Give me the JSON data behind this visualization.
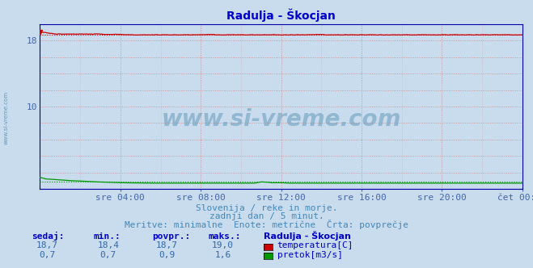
{
  "title": "Radulja - Škocjan",
  "background_color": "#c8dced",
  "plot_bg_color": "#c8dced",
  "xlim": [
    0,
    288
  ],
  "ylim": [
    0,
    20
  ],
  "ytick_vals": [
    10,
    18
  ],
  "ytick_labels": [
    "10",
    "18"
  ],
  "xtick_labels": [
    "sre 04:00",
    "sre 08:00",
    "sre 12:00",
    "sre 16:00",
    "sre 20:00",
    "čet 00:00"
  ],
  "xtick_positions": [
    48,
    96,
    144,
    192,
    240,
    288
  ],
  "temp_color": "#cc0000",
  "flow_color": "#009900",
  "height_color": "#0000bb",
  "grid_color": "#cc8888",
  "grid_dotted_color": "#ddaaaa",
  "watermark": "www.si-vreme.com",
  "subtitle1": "Slovenija / reke in morje.",
  "subtitle2": "zadnji dan / 5 minut.",
  "subtitle3": "Meritve: minimalne  Enote: metrične  Črta: povprečje",
  "legend_title": "Radulja - Škocjan",
  "legend_items": [
    "temperatura[C]",
    "pretok[m3/s]"
  ],
  "legend_colors": [
    "#cc0000",
    "#009900"
  ],
  "stats_headers": [
    "sedaj:",
    "min.:",
    "povpr.:",
    "maks.:"
  ],
  "stats_temp": [
    "18,7",
    "18,4",
    "18,7",
    "19,0"
  ],
  "stats_flow": [
    "0,7",
    "0,7",
    "0,9",
    "1,6"
  ],
  "temp_min": 18.4,
  "temp_max": 19.0,
  "temp_avg": 18.7,
  "flow_min": 0.7,
  "flow_max": 1.6,
  "flow_avg": 0.9,
  "height_val": 0.05,
  "y_scale_max": 20.0,
  "title_color": "#0000cc",
  "subtitle_color": "#4488bb",
  "stats_header_color": "#0000cc",
  "stats_val_color": "#3366aa",
  "watermark_color": "#6699bb",
  "axis_color": "#4466aa",
  "spine_color": "#0000aa"
}
